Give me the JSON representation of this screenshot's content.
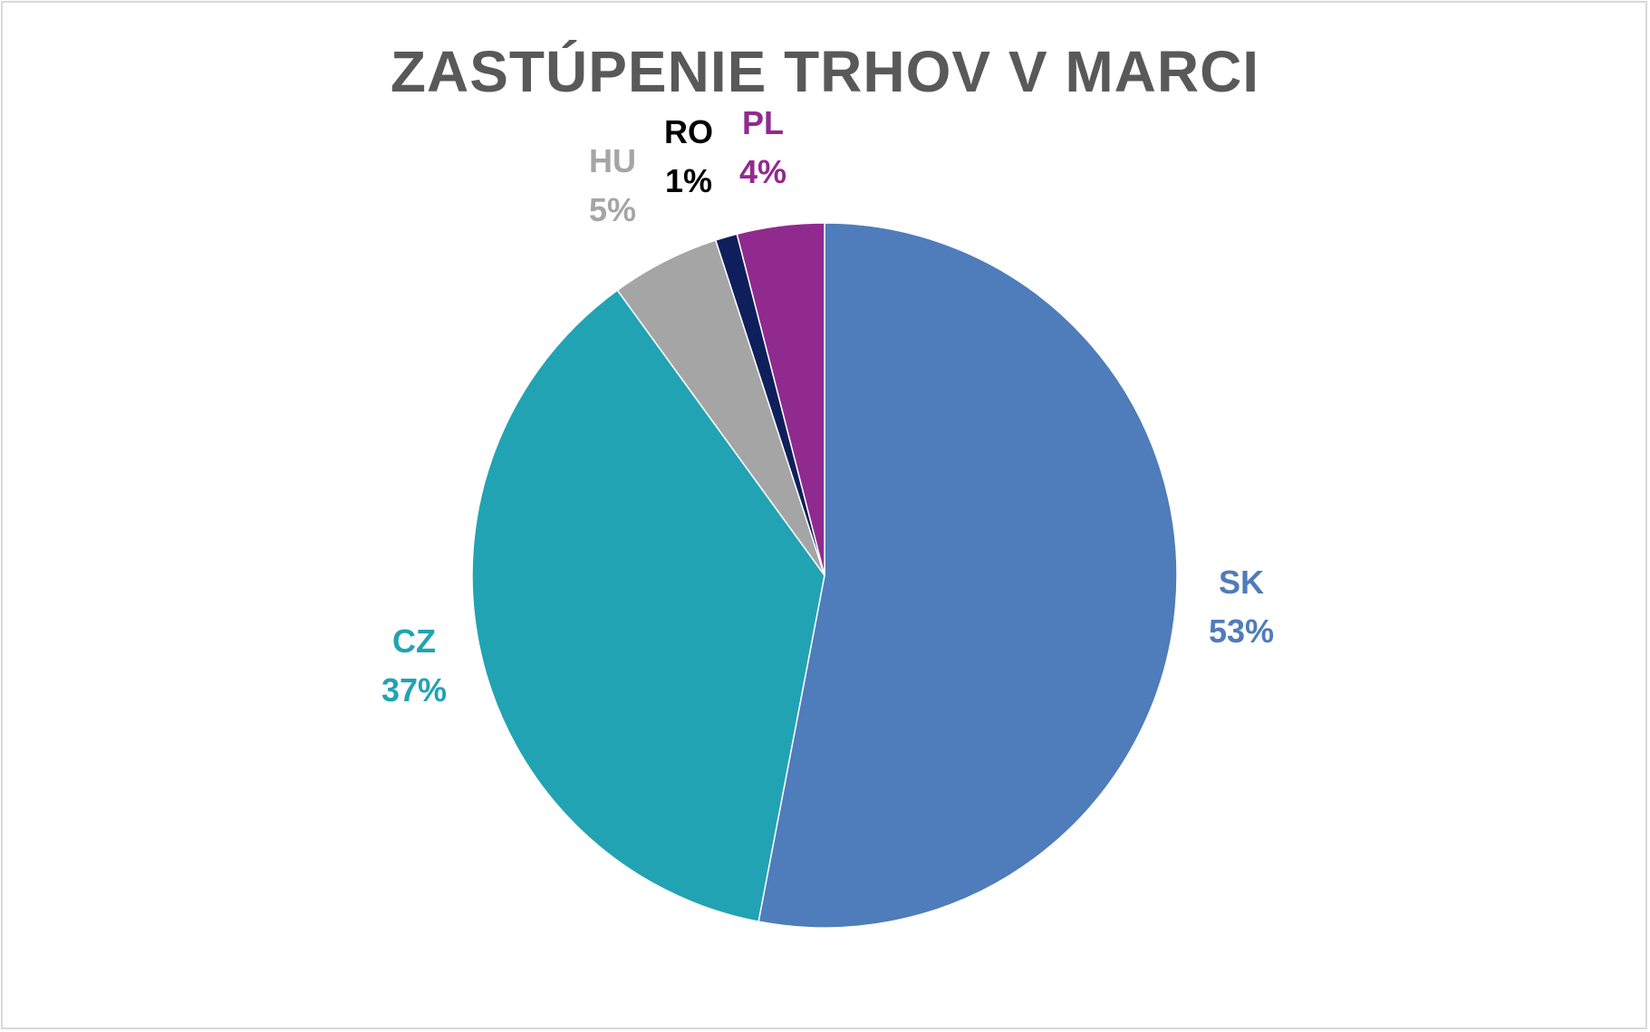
{
  "chart_data": {
    "type": "pie",
    "title": "ZASTÚPENIE TRHOV V MARCI",
    "slices": [
      {
        "label": "SK",
        "value": 53,
        "percent_text": "53%",
        "color": "#4f7cba"
      },
      {
        "label": "CZ",
        "value": 37,
        "percent_text": "37%",
        "color": "#21a3b3"
      },
      {
        "label": "HU",
        "value": 5,
        "percent_text": "5%",
        "color": "#a5a5a5"
      },
      {
        "label": "RO",
        "value": 1,
        "percent_text": "1%",
        "color": "#0e1f5b"
      },
      {
        "label": "PL",
        "value": 4,
        "percent_text": "4%",
        "color": "#912a8f"
      }
    ],
    "label_colors": {
      "SK": "#4f7cba",
      "CZ": "#21a3b3",
      "HU": "#a5a5a5",
      "RO": "#000000",
      "PL": "#912a8f"
    },
    "start_angle_deg": 0,
    "direction": "clockwise",
    "legend": "none"
  }
}
